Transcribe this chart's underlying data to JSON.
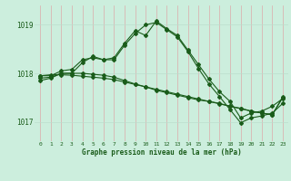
{
  "title": "Graphe pression niveau de la mer (hPa)",
  "background_color": "#cceedd",
  "grid_color_v": "#ddaaaa",
  "grid_color_h": "#bbddcc",
  "line_color": "#1a5c1a",
  "xlim": [
    -0.5,
    23.5
  ],
  "ylim": [
    1016.6,
    1019.4
  ],
  "yticks": [
    1017,
    1018,
    1019
  ],
  "xticks": [
    0,
    1,
    2,
    3,
    4,
    5,
    6,
    7,
    8,
    9,
    10,
    11,
    12,
    13,
    14,
    15,
    16,
    17,
    18,
    19,
    20,
    21,
    22,
    23
  ],
  "series1": [
    1017.85,
    1017.9,
    1018.0,
    1018.0,
    1018.22,
    1018.35,
    1018.28,
    1018.28,
    1018.58,
    1018.82,
    1019.0,
    1019.05,
    1018.9,
    1018.75,
    1018.45,
    1018.1,
    1017.78,
    1017.52,
    1017.25,
    1016.98,
    1017.08,
    1017.12,
    1017.18,
    1017.38
  ],
  "series2": [
    1017.95,
    1017.95,
    1018.05,
    1018.08,
    1018.28,
    1018.32,
    1018.28,
    1018.32,
    1018.62,
    1018.88,
    1018.78,
    1019.08,
    1018.92,
    1018.78,
    1018.48,
    1018.18,
    1017.88,
    1017.62,
    1017.42,
    1017.08,
    1017.18,
    1017.22,
    1017.32,
    1017.48
  ],
  "series3": [
    1017.9,
    1017.92,
    1018.0,
    1018.0,
    1018.0,
    1017.98,
    1017.96,
    1017.92,
    1017.85,
    1017.78,
    1017.72,
    1017.65,
    1017.6,
    1017.55,
    1017.5,
    1017.45,
    1017.42,
    1017.38,
    1017.32,
    1017.28,
    1017.22,
    1017.18,
    1017.15,
    1017.5
  ],
  "series4": [
    1017.95,
    1017.97,
    1017.97,
    1017.96,
    1017.94,
    1017.92,
    1017.9,
    1017.87,
    1017.82,
    1017.77,
    1017.72,
    1017.67,
    1017.62,
    1017.57,
    1017.52,
    1017.47,
    1017.42,
    1017.37,
    1017.32,
    1017.27,
    1017.22,
    1017.18,
    1017.14,
    1017.52
  ]
}
